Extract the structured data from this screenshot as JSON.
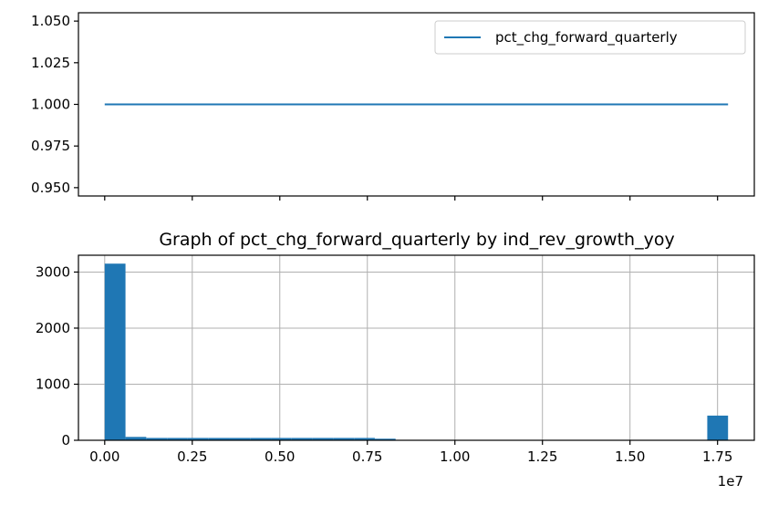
{
  "chart_data": [
    {
      "type": "line",
      "legend": {
        "position": "top-right",
        "entries": [
          "pct_chg_forward_quarterly"
        ]
      },
      "series": [
        {
          "name": "pct_chg_forward_quarterly",
          "color": "#1f77b4",
          "x": [
            0,
            17800000
          ],
          "y": [
            1.0,
            1.0
          ]
        }
      ],
      "xlim": [
        -750000,
        18550000
      ],
      "ylim": [
        0.945,
        1.055
      ],
      "yticks": [
        "0.950",
        "0.975",
        "1.000",
        "1.025",
        "1.050"
      ],
      "ytick_values": [
        0.95,
        0.975,
        1.0,
        1.025,
        1.05
      ],
      "xtick_values": [
        0,
        2500000,
        5000000,
        7500000,
        10000000,
        12500000,
        15000000,
        17500000
      ],
      "x_tick_labels_shown": false,
      "grid": false
    },
    {
      "type": "bar",
      "title": "Graph of pct_chg_forward_quarterly by ind_rev_growth_yoy",
      "color": "#1f77b4",
      "bin_width": 593333,
      "bin_starts": [
        0,
        593333,
        1186667,
        1780000,
        2373333,
        2966667,
        3560000,
        4153333,
        4746667,
        5340000,
        5933333,
        6526667,
        7120000,
        7713333,
        8306667,
        8900000,
        9493333,
        10086667,
        10680000,
        11273333,
        11866667,
        12460000,
        13053333,
        13646667,
        14240000,
        14833333,
        15426667,
        16020000,
        16613333,
        17206667
      ],
      "values": [
        3150,
        60,
        42,
        42,
        42,
        42,
        42,
        42,
        42,
        42,
        42,
        42,
        42,
        28,
        3,
        2,
        2,
        2,
        2,
        2,
        2,
        2,
        2,
        2,
        2,
        2,
        2,
        2,
        2,
        440
      ],
      "xlim": [
        -750000,
        18550000
      ],
      "ylim": [
        0,
        3300
      ],
      "xticks": [
        "0.00",
        "0.25",
        "0.50",
        "0.75",
        "1.00",
        "1.25",
        "1.50",
        "1.75"
      ],
      "xtick_values": [
        0,
        2500000,
        5000000,
        7500000,
        10000000,
        12500000,
        15000000,
        17500000
      ],
      "x_offset_label": "1e7",
      "yticks": [
        "0",
        "1000",
        "2000",
        "3000"
      ],
      "ytick_values": [
        0,
        1000,
        2000,
        3000
      ],
      "grid": true
    }
  ]
}
